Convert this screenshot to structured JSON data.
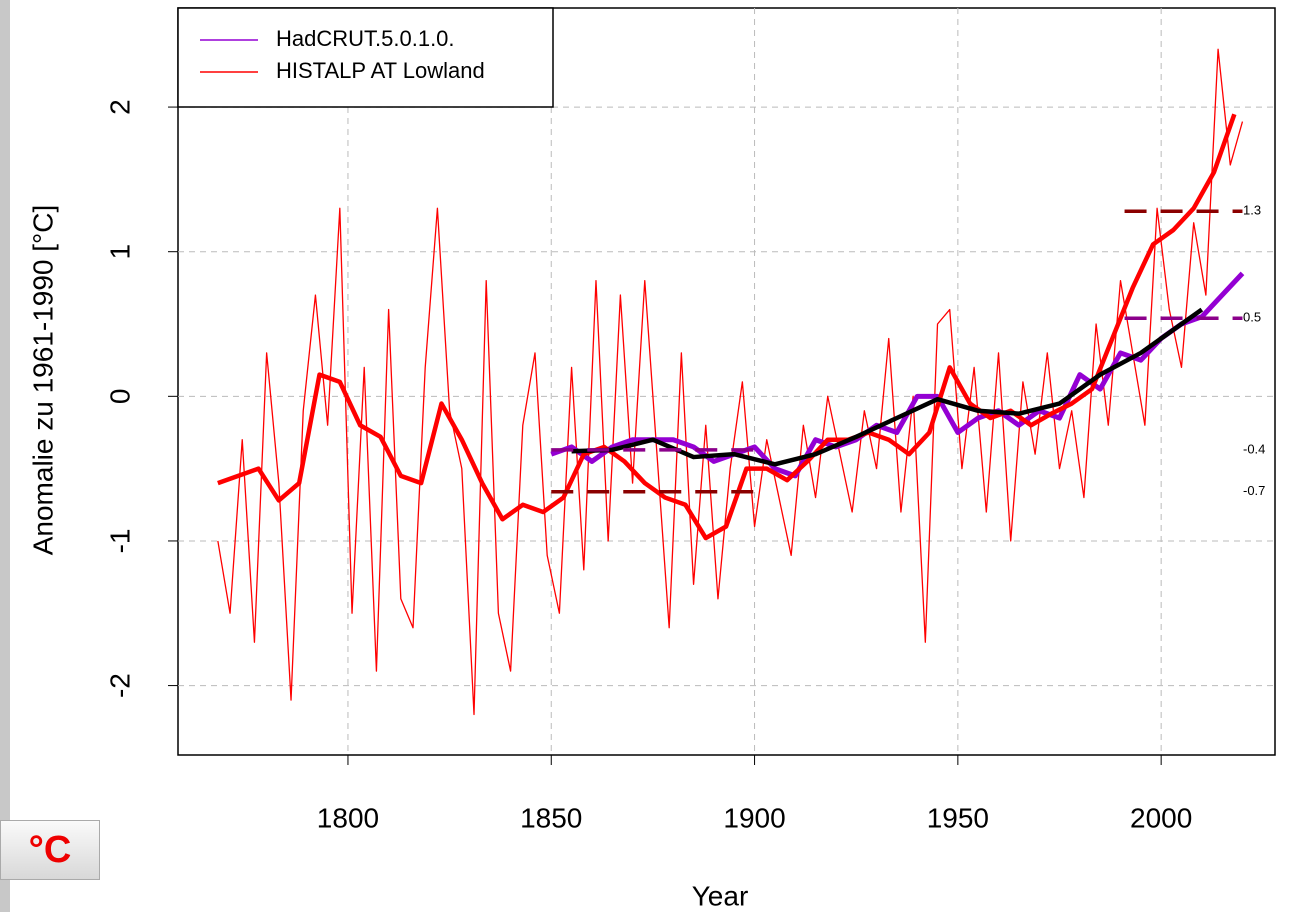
{
  "button_label": "°C",
  "chart_data": {
    "type": "line",
    "xlabel": "Year",
    "ylabel": "Anomalie zu 1961-1990 [°C]",
    "xlim": [
      1758.2,
      2028
    ],
    "ylim": [
      -2.48,
      2.685
    ],
    "xticks": [
      1800,
      1850,
      1900,
      1950,
      2000
    ],
    "yticks": [
      -2,
      -1,
      0,
      1,
      2
    ],
    "grid": true,
    "legend": "top-left",
    "series": [
      {
        "name": "HadCRUT.5.0.1.0.",
        "color": "#9400d3",
        "x": [
          1850,
          1855,
          1860,
          1865,
          1870,
          1875,
          1880,
          1885,
          1890,
          1895,
          1900,
          1905,
          1910,
          1915,
          1920,
          1925,
          1930,
          1935,
          1940,
          1945,
          1950,
          1955,
          1960,
          1965,
          1970,
          1975,
          1980,
          1985,
          1990,
          1995,
          2000,
          2005,
          2010,
          2015,
          2020
        ],
        "values": [
          -0.4,
          -0.35,
          -0.45,
          -0.35,
          -0.3,
          -0.3,
          -0.3,
          -0.35,
          -0.45,
          -0.4,
          -0.35,
          -0.5,
          -0.55,
          -0.3,
          -0.35,
          -0.3,
          -0.2,
          -0.25,
          0.0,
          0.0,
          -0.25,
          -0.15,
          -0.1,
          -0.2,
          -0.1,
          -0.15,
          0.15,
          0.05,
          0.3,
          0.25,
          0.4,
          0.5,
          0.55,
          0.7,
          0.85
        ]
      },
      {
        "name": "HISTALP AT Lowland",
        "color": "#ff0000",
        "x": [
          1768,
          1771,
          1774,
          1777,
          1780,
          1783,
          1786,
          1789,
          1792,
          1795,
          1798,
          1801,
          1804,
          1807,
          1810,
          1813,
          1816,
          1819,
          1822,
          1825,
          1828,
          1831,
          1834,
          1837,
          1840,
          1843,
          1846,
          1849,
          1852,
          1855,
          1858,
          1861,
          1864,
          1867,
          1870,
          1873,
          1876,
          1879,
          1882,
          1885,
          1888,
          1891,
          1894,
          1897,
          1900,
          1903,
          1906,
          1909,
          1912,
          1915,
          1918,
          1921,
          1924,
          1927,
          1930,
          1933,
          1936,
          1939,
          1942,
          1945,
          1948,
          1951,
          1954,
          1957,
          1960,
          1963,
          1966,
          1969,
          1972,
          1975,
          1978,
          1981,
          1984,
          1987,
          1990,
          1993,
          1996,
          1999,
          2002,
          2005,
          2008,
          2011,
          2014,
          2017,
          2020
        ],
        "values": [
          -1.0,
          -1.5,
          -0.3,
          -1.7,
          0.3,
          -0.6,
          -2.1,
          -0.1,
          0.7,
          -0.2,
          1.3,
          -1.5,
          0.2,
          -1.9,
          0.6,
          -1.4,
          -1.6,
          0.2,
          1.3,
          -0.1,
          -0.5,
          -2.2,
          0.8,
          -1.5,
          -1.9,
          -0.2,
          0.3,
          -1.1,
          -1.5,
          0.2,
          -1.2,
          0.8,
          -1.0,
          0.7,
          -0.6,
          0.8,
          -0.4,
          -1.6,
          0.3,
          -1.3,
          -0.2,
          -1.4,
          -0.5,
          0.1,
          -0.9,
          -0.3,
          -0.7,
          -1.1,
          -0.2,
          -0.7,
          0.0,
          -0.4,
          -0.8,
          -0.1,
          -0.5,
          0.4,
          -0.8,
          0.0,
          -1.7,
          0.5,
          0.6,
          -0.5,
          0.2,
          -0.8,
          0.3,
          -1.0,
          0.1,
          -0.4,
          0.3,
          -0.5,
          -0.1,
          -0.7,
          0.5,
          -0.2,
          0.8,
          0.3,
          -0.2,
          1.3,
          0.6,
          0.2,
          1.2,
          0.7,
          2.4,
          1.6,
          1.9
        ]
      }
    ],
    "smoothed": [
      {
        "color": "#ff0000",
        "x": [
          1768,
          1773,
          1778,
          1783,
          1788,
          1793,
          1798,
          1803,
          1808,
          1813,
          1818,
          1823,
          1828,
          1833,
          1838,
          1843,
          1848,
          1853,
          1858,
          1863,
          1868,
          1873,
          1878,
          1883,
          1888,
          1893,
          1898,
          1903,
          1908,
          1913,
          1918,
          1923,
          1928,
          1933,
          1938,
          1943,
          1948,
          1953,
          1958,
          1963,
          1968,
          1973,
          1978,
          1983,
          1988,
          1993,
          1998,
          2003,
          2008,
          2013,
          2018
        ],
        "values": [
          -0.6,
          -0.55,
          -0.5,
          -0.72,
          -0.6,
          0.15,
          0.1,
          -0.2,
          -0.28,
          -0.55,
          -0.6,
          -0.05,
          -0.3,
          -0.6,
          -0.85,
          -0.75,
          -0.8,
          -0.7,
          -0.4,
          -0.35,
          -0.45,
          -0.6,
          -0.7,
          -0.75,
          -0.98,
          -0.9,
          -0.5,
          -0.5,
          -0.58,
          -0.45,
          -0.3,
          -0.3,
          -0.25,
          -0.3,
          -0.4,
          -0.25,
          0.2,
          -0.05,
          -0.15,
          -0.1,
          -0.2,
          -0.12,
          -0.05,
          0.05,
          0.4,
          0.75,
          1.05,
          1.15,
          1.3,
          1.55,
          1.95
        ]
      },
      {
        "color": "#000000",
        "x": [
          1855,
          1865,
          1875,
          1885,
          1895,
          1905,
          1915,
          1925,
          1935,
          1945,
          1955,
          1965,
          1975,
          1985,
          1995,
          2005,
          2010
        ],
        "values": [
          -0.38,
          -0.37,
          -0.3,
          -0.42,
          -0.4,
          -0.47,
          -0.4,
          -0.28,
          -0.15,
          -0.02,
          -0.1,
          -0.12,
          -0.05,
          0.15,
          0.3,
          0.5,
          0.6
        ]
      }
    ],
    "reference_lines": [
      {
        "color": "#8b0000",
        "x": [
          1991,
          2020
        ],
        "value": 1.28,
        "value_label": "1.3"
      },
      {
        "color": "#8b008b",
        "x": [
          1991,
          2020
        ],
        "value": 0.54,
        "value_label": "0.5"
      },
      {
        "color": "#8b008b",
        "x": [
          1850,
          1900
        ],
        "value": -0.37,
        "value_label": "-0.4"
      },
      {
        "color": "#8b0000",
        "x": [
          1850,
          1900
        ],
        "value": -0.66,
        "value_label": "-0.7"
      }
    ]
  }
}
